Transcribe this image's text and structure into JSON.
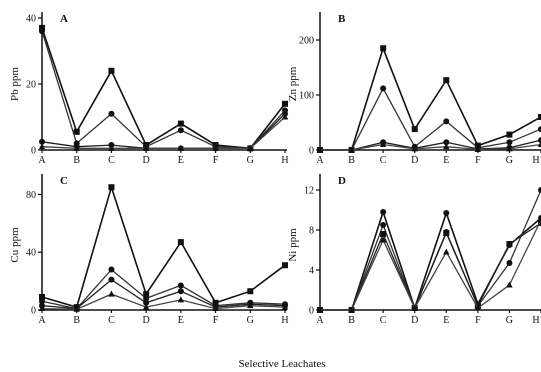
{
  "figure": {
    "xlabel": "Selective Leachates"
  },
  "chart_data": [
    {
      "type": "line",
      "panel_label": "A",
      "ylabel": "Pb ppm",
      "categories": [
        "A",
        "B",
        "C",
        "D",
        "E",
        "F",
        "G",
        "H"
      ],
      "ylim": [
        0,
        40
      ],
      "yticks": [
        "0",
        "20",
        "40"
      ],
      "grid": false,
      "series": [
        {
          "marker": "square",
          "values": [
            37,
            5.5,
            24,
            1.5,
            8,
            1.5,
            0.5,
            14
          ]
        },
        {
          "marker": "circle",
          "values": [
            36,
            2,
            11,
            1,
            6,
            1,
            0.5,
            12
          ]
        },
        {
          "marker": "circle",
          "values": [
            2.5,
            1,
            1.5,
            0.5,
            0.5,
            0.5,
            0.5,
            11
          ]
        },
        {
          "marker": "triangle",
          "values": [
            1,
            0.5,
            0.5,
            0.5,
            0.5,
            0.5,
            0.5,
            10
          ]
        }
      ]
    },
    {
      "type": "line",
      "panel_label": "B",
      "ylabel": "Zn ppm",
      "categories": [
        "A",
        "B",
        "C",
        "D",
        "E",
        "F",
        "G",
        "H"
      ],
      "ylim": [
        0,
        240
      ],
      "yticks": [
        "0",
        "100",
        "200"
      ],
      "grid": false,
      "series": [
        {
          "marker": "square",
          "values": [
            0,
            0,
            185,
            38,
            127,
            8,
            28,
            60
          ]
        },
        {
          "marker": "circle",
          "values": [
            0,
            0,
            112,
            6,
            52,
            4,
            14,
            38
          ]
        },
        {
          "marker": "circle",
          "values": [
            0,
            0,
            14,
            3,
            14,
            2,
            4,
            18
          ]
        },
        {
          "marker": "triangle",
          "values": [
            0,
            0,
            10,
            2,
            6,
            1,
            2,
            10
          ]
        }
      ]
    },
    {
      "type": "line",
      "panel_label": "C",
      "ylabel": "Cu ppm",
      "categories": [
        "A",
        "B",
        "C",
        "D",
        "E",
        "F",
        "G",
        "H"
      ],
      "ylim": [
        0,
        90
      ],
      "yticks": [
        "0",
        "40",
        "80"
      ],
      "grid": false,
      "series": [
        {
          "marker": "square",
          "values": [
            9,
            2,
            85,
            11,
            47,
            5,
            13,
            31
          ]
        },
        {
          "marker": "circle",
          "values": [
            6,
            1,
            28,
            8,
            17,
            3,
            5,
            4
          ]
        },
        {
          "marker": "circle",
          "values": [
            3,
            1,
            21,
            5,
            13,
            2,
            4,
            3
          ]
        },
        {
          "marker": "triangle",
          "values": [
            1,
            0.5,
            11,
            2,
            7,
            1,
            3,
            2
          ]
        }
      ]
    },
    {
      "type": "line",
      "panel_label": "D",
      "ylabel": "Ni ppm",
      "categories": [
        "A",
        "B",
        "C",
        "D",
        "E",
        "F",
        "G",
        "H"
      ],
      "ylim": [
        0,
        13
      ],
      "yticks": [
        "0",
        "4",
        "8",
        "12"
      ],
      "grid": false,
      "series": [
        {
          "marker": "circle",
          "values": [
            0,
            0,
            9.8,
            0.2,
            9.7,
            0.6,
            6.5,
            9.2
          ]
        },
        {
          "marker": "circle",
          "values": [
            0,
            0,
            8.5,
            0.2,
            7.8,
            0.4,
            4.7,
            12
          ]
        },
        {
          "marker": "square",
          "values": [
            0,
            0,
            7.6,
            0.2,
            7.7,
            0.4,
            6.6,
            8.7
          ]
        },
        {
          "marker": "triangle",
          "values": [
            0,
            0,
            7.0,
            0.2,
            5.8,
            0.2,
            2.5,
            9.0
          ]
        }
      ]
    }
  ]
}
